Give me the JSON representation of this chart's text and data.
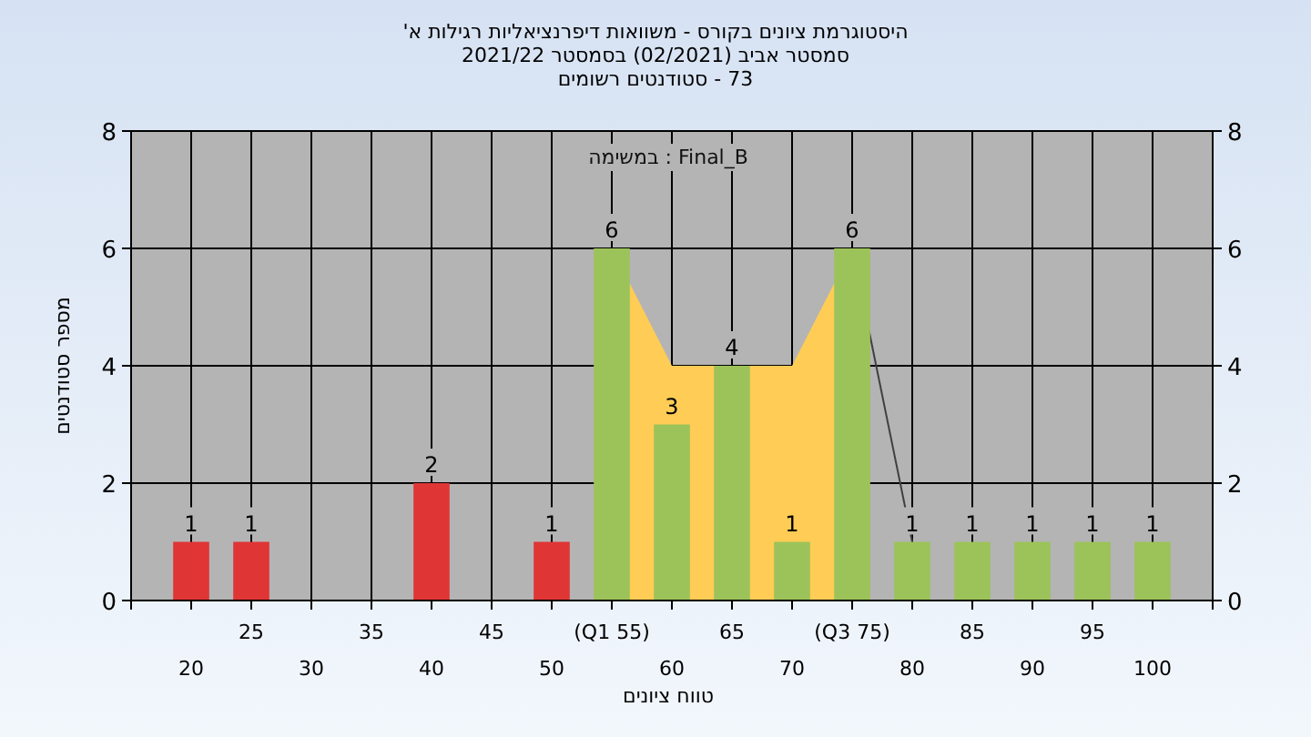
{
  "chart_data": {
    "type": "bar",
    "title": "היסטוגרמת ציונים בקורס - משוואות דיפרנציאליות רגילות א'",
    "subtitle": [
      "סמסטר אביב (02/2021) בסמסטר 2021/22",
      "73 - סטודנטים רשומים"
    ],
    "annotations": [
      "Final_B : במשימה"
    ],
    "xlabel": "טווח ציונים",
    "ylabel": "מספר סטודנטים",
    "categories": [
      "20",
      "25",
      "30",
      "35",
      "40",
      "45",
      "50",
      "(Q1 55)",
      "60",
      "65",
      "70",
      "(Q3 75)",
      "80",
      "85",
      "90",
      "95",
      "100"
    ],
    "series": [
      {
        "type": "area",
        "color": "#ffcc55",
        "values": [
          null,
          null,
          null,
          null,
          null,
          null,
          null,
          6,
          4,
          null,
          4,
          6,
          null,
          null,
          null,
          null,
          null
        ]
      },
      {
        "type": "line",
        "color": "#404040",
        "values": [
          null,
          null,
          null,
          null,
          null,
          null,
          null,
          null,
          null,
          null,
          null,
          6,
          1,
          null,
          null,
          null,
          null
        ]
      },
      {
        "colors": [
          "#e03535",
          "#e03535",
          "#e03535",
          "#e03535",
          "#e03535",
          "#e03535",
          "#e03535",
          "#9cc35a",
          "#9cc35a",
          "#9cc35a",
          "#9cc35a",
          "#9cc35a",
          "#9cc35a",
          "#9cc35a",
          "#9cc35a",
          "#9cc35a",
          "#9cc35a"
        ],
        "values": [
          1,
          1,
          0,
          0,
          2,
          0,
          1,
          6,
          3,
          4,
          1,
          6,
          1,
          1,
          1,
          1,
          1
        ],
        "value_labels": [
          "1",
          "1",
          null,
          null,
          "2",
          null,
          "1",
          "6",
          "3",
          "4",
          "1",
          "6",
          "1",
          "1",
          "1",
          "1",
          "1"
        ]
      }
    ],
    "ylim": [
      0,
      8
    ],
    "yticks": [
      0,
      2,
      4,
      6,
      8
    ],
    "y2lim": [
      0,
      8
    ],
    "y2ticks": [
      0,
      2,
      4,
      6,
      8
    ],
    "grid": true
  }
}
